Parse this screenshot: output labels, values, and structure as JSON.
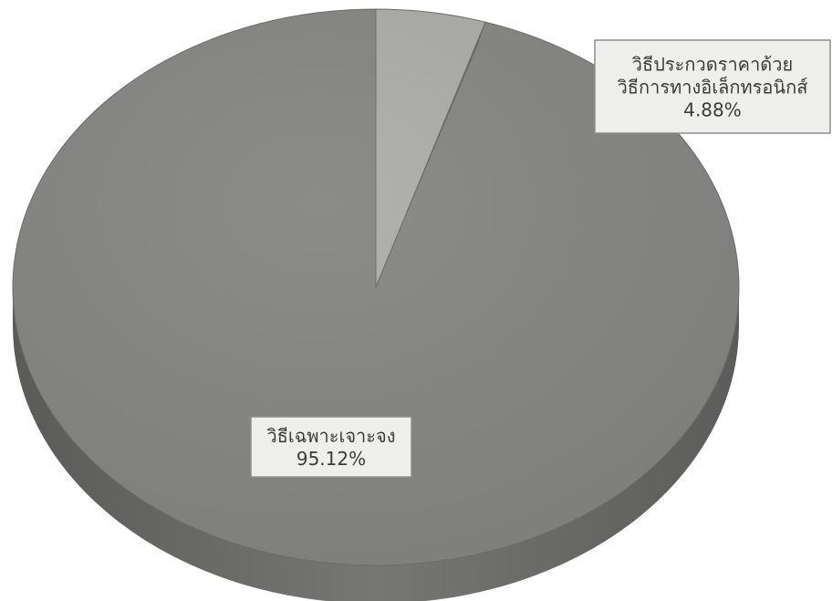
{
  "chart_data": {
    "type": "pie",
    "style": "3d",
    "legend": "none",
    "slices": [
      {
        "label_lines": [
          "วิธีประกวดราคาด้วย",
          "วิธีการทางอิเล็กทรอนิกส์"
        ],
        "percent_text": "4.88%",
        "value": 4.88,
        "color": "#b1b1ad"
      },
      {
        "label_lines": [
          "วิธีเฉพาะเจาะจง"
        ],
        "percent_text": "95.12%",
        "value": 95.12,
        "color": "#8b8b89"
      }
    ]
  }
}
